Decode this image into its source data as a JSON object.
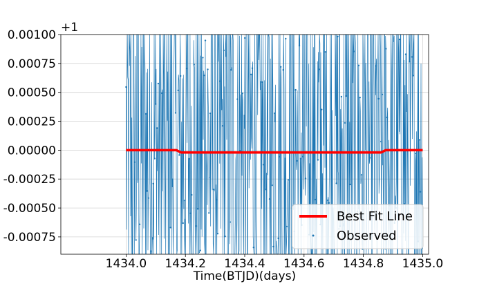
{
  "chart_data": {
    "type": "line",
    "title": "",
    "xlabel": "Time(BTJD)(days)",
    "ylabel": "",
    "offset_label": "+1",
    "xlim": [
      1434.0,
      1435.0
    ],
    "ylim": [
      -0.0009,
      0.001
    ],
    "grid": true,
    "xticks": [
      1434.0,
      1434.2,
      1434.4,
      1434.6,
      1434.8,
      1435.0
    ],
    "xtick_labels": [
      "1434.0",
      "1434.2",
      "1434.4",
      "1434.6",
      "1434.8",
      "1435.0"
    ],
    "yticks": [
      0.001,
      0.00075,
      0.0005,
      0.00025,
      0.0,
      -0.00025,
      -0.0005,
      -0.00075
    ],
    "ytick_labels": [
      "0.00100",
      "0.00075",
      "0.00050",
      "0.00025",
      "0.00000",
      "-0.00025",
      "-0.00050",
      "-0.00075"
    ],
    "legend_position": "lower-right",
    "series": [
      {
        "name": "Best Fit Line",
        "color": "#ff0000",
        "style": "line",
        "x": [
          1434.0,
          1434.17,
          1434.185,
          1434.86,
          1434.875,
          1435.0
        ],
        "y": [
          0.0,
          0.0,
          -2e-05,
          -2e-05,
          0.0,
          0.0
        ]
      },
      {
        "name": "Observed",
        "color": "#1f77b4",
        "style": "line-with-markers",
        "x_start": 1434.0,
        "x_end": 1435.0,
        "n_points": 720,
        "amplitude": 0.0016
      }
    ]
  }
}
